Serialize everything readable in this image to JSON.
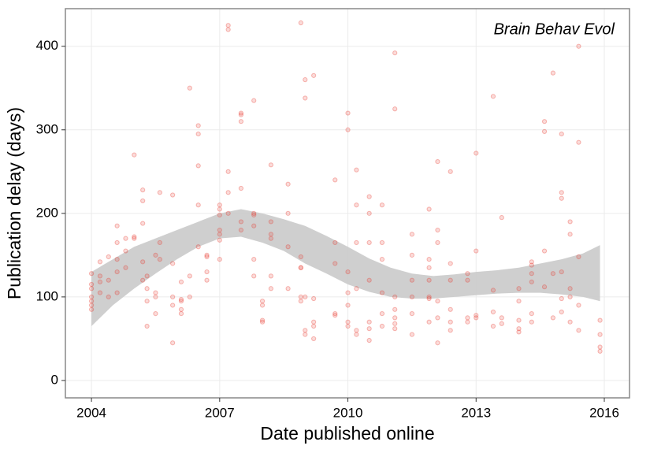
{
  "chart_data": {
    "type": "scatter",
    "annotation": "Brain Behav Evol",
    "x_label": "Date published online",
    "y_label": "Publication delay (days)",
    "xlim": [
      2003.39,
      2016.59
    ],
    "xticks": [
      2004,
      2007,
      2010,
      2013,
      2016
    ],
    "ylim": [
      -20.8,
      445
    ],
    "yticks": [
      0,
      100,
      200,
      300,
      400
    ],
    "grid": true,
    "color": "#e8382f",
    "x": [
      2004.0,
      2004.0,
      2004.0,
      2004.0,
      2004.0,
      2004.0,
      2004.0,
      2004.2,
      2004.2,
      2004.2,
      2004.2,
      2004.4,
      2004.4,
      2004.4,
      2004.6,
      2004.6,
      2004.6,
      2004.6,
      2004.6,
      2004.8,
      2004.8,
      2004.8,
      2005.0,
      2005.0,
      2005.0,
      2005.2,
      2005.2,
      2005.2,
      2005.2,
      2005.2,
      2005.3,
      2005.3,
      2005.3,
      2005.3,
      2005.5,
      2005.5,
      2005.5,
      2005.5,
      2005.6,
      2005.6,
      2005.6,
      2005.9,
      2005.9,
      2005.9,
      2005.9,
      2005.9,
      2006.1,
      2006.1,
      2006.1,
      2006.1,
      2006.1,
      2006.3,
      2006.3,
      2006.3,
      2006.5,
      2006.5,
      2006.5,
      2006.5,
      2006.5,
      2006.7,
      2006.7,
      2006.7,
      2006.7,
      2007.0,
      2007.0,
      2007.0,
      2007.0,
      2007.0,
      2007.0,
      2007.0,
      2007.2,
      2007.2,
      2007.2,
      2007.2,
      2007.2,
      2007.5,
      2007.5,
      2007.5,
      2007.5,
      2007.5,
      2007.5,
      2007.8,
      2007.8,
      2007.8,
      2007.8,
      2007.8,
      2007.8,
      2008.0,
      2008.0,
      2008.0,
      2008.0,
      2008.2,
      2008.2,
      2008.2,
      2008.2,
      2008.2,
      2008.2,
      2008.6,
      2008.6,
      2008.6,
      2008.6,
      2008.9,
      2008.9,
      2008.9,
      2008.9,
      2008.9,
      2008.9,
      2009.0,
      2009.0,
      2009.0,
      2009.0,
      2009.0,
      2009.2,
      2009.2,
      2009.2,
      2009.2,
      2009.2,
      2009.7,
      2009.7,
      2009.7,
      2009.7,
      2009.7,
      2010.0,
      2010.0,
      2010.0,
      2010.0,
      2010.0,
      2010.0,
      2010.0,
      2010.2,
      2010.2,
      2010.2,
      2010.2,
      2010.2,
      2010.2,
      2010.5,
      2010.5,
      2010.5,
      2010.5,
      2010.5,
      2010.5,
      2010.5,
      2010.8,
      2010.8,
      2010.8,
      2010.8,
      2010.8,
      2010.8,
      2011.1,
      2011.1,
      2011.1,
      2011.1,
      2011.1,
      2011.1,
      2011.1,
      2011.5,
      2011.5,
      2011.5,
      2011.5,
      2011.5,
      2011.5,
      2011.9,
      2011.9,
      2011.9,
      2011.9,
      2011.9,
      2011.9,
      2011.9,
      2012.1,
      2012.1,
      2012.1,
      2012.1,
      2012.1,
      2012.1,
      2012.4,
      2012.4,
      2012.4,
      2012.4,
      2012.4,
      2012.4,
      2012.8,
      2012.8,
      2012.8,
      2012.8,
      2013.0,
      2013.0,
      2013.0,
      2013.0,
      2013.4,
      2013.4,
      2013.4,
      2013.4,
      2013.6,
      2013.6,
      2013.6,
      2014.0,
      2014.0,
      2014.0,
      2014.0,
      2014.0,
      2014.3,
      2014.3,
      2014.3,
      2014.3,
      2014.3,
      2014.3,
      2014.6,
      2014.6,
      2014.6,
      2014.6,
      2014.8,
      2014.8,
      2014.8,
      2015.0,
      2015.0,
      2015.0,
      2015.0,
      2015.0,
      2015.0,
      2015.2,
      2015.2,
      2015.2,
      2015.2,
      2015.2,
      2015.4,
      2015.4,
      2015.4,
      2015.4,
      2015.4,
      2015.9,
      2015.9,
      2015.9,
      2015.9
    ],
    "values": [
      115,
      110,
      95,
      90,
      85,
      100,
      128,
      142,
      125,
      105,
      118,
      120,
      100,
      148,
      145,
      165,
      185,
      130,
      105,
      155,
      170,
      135,
      270,
      170,
      172,
      228,
      215,
      188,
      142,
      120,
      110,
      95,
      65,
      125,
      100,
      80,
      105,
      150,
      225,
      165,
      145,
      222,
      140,
      100,
      90,
      45,
      118,
      80,
      95,
      97,
      85,
      350,
      125,
      100,
      257,
      295,
      305,
      210,
      160,
      130,
      120,
      150,
      148,
      210,
      205,
      198,
      180,
      175,
      168,
      145,
      425,
      420,
      250,
      225,
      200,
      320,
      318,
      310,
      230,
      190,
      180,
      335,
      200,
      198,
      185,
      145,
      125,
      95,
      90,
      70,
      72,
      258,
      190,
      175,
      170,
      125,
      110,
      235,
      200,
      160,
      110,
      428,
      148,
      135,
      135,
      100,
      95,
      360,
      338,
      100,
      60,
      55,
      365,
      98,
      70,
      65,
      50,
      240,
      165,
      140,
      80,
      78,
      320,
      300,
      130,
      65,
      70,
      90,
      105,
      252,
      210,
      165,
      110,
      60,
      55,
      220,
      200,
      165,
      120,
      70,
      62,
      48,
      210,
      165,
      145,
      105,
      80,
      65,
      392,
      325,
      100,
      85,
      68,
      62,
      75,
      175,
      150,
      120,
      100,
      80,
      55,
      205,
      145,
      135,
      120,
      100,
      98,
      70,
      262,
      180,
      165,
      95,
      75,
      45,
      250,
      140,
      120,
      85,
      70,
      60,
      128,
      120,
      75,
      70,
      272,
      155,
      78,
      75,
      340,
      108,
      82,
      65,
      195,
      75,
      68,
      110,
      95,
      72,
      62,
      58,
      142,
      138,
      128,
      118,
      80,
      70,
      310,
      298,
      155,
      112,
      368,
      128,
      75,
      295,
      225,
      218,
      130,
      98,
      82,
      190,
      175,
      110,
      100,
      70,
      400,
      285,
      148,
      90,
      60,
      72,
      55,
      40,
      35
    ],
    "band": {
      "color": "#cccccc",
      "x": [
        2004.0,
        2004.5,
        2005.0,
        2005.5,
        2006.0,
        2006.5,
        2007.0,
        2007.5,
        2008.0,
        2008.5,
        2009.0,
        2009.5,
        2010.0,
        2010.5,
        2011.0,
        2011.5,
        2012.0,
        2012.5,
        2013.0,
        2013.5,
        2014.0,
        2014.5,
        2015.0,
        2015.5,
        2015.9
      ],
      "lower": [
        65,
        90,
        110,
        128,
        145,
        160,
        170,
        172,
        165,
        155,
        140,
        128,
        115,
        106,
        100,
        98,
        98,
        100,
        102,
        104,
        105,
        105,
        103,
        100,
        95
      ],
      "upper": [
        130,
        145,
        160,
        170,
        180,
        190,
        200,
        205,
        200,
        193,
        185,
        173,
        160,
        146,
        135,
        128,
        125,
        127,
        130,
        132,
        135,
        140,
        145,
        152,
        162
      ]
    }
  }
}
